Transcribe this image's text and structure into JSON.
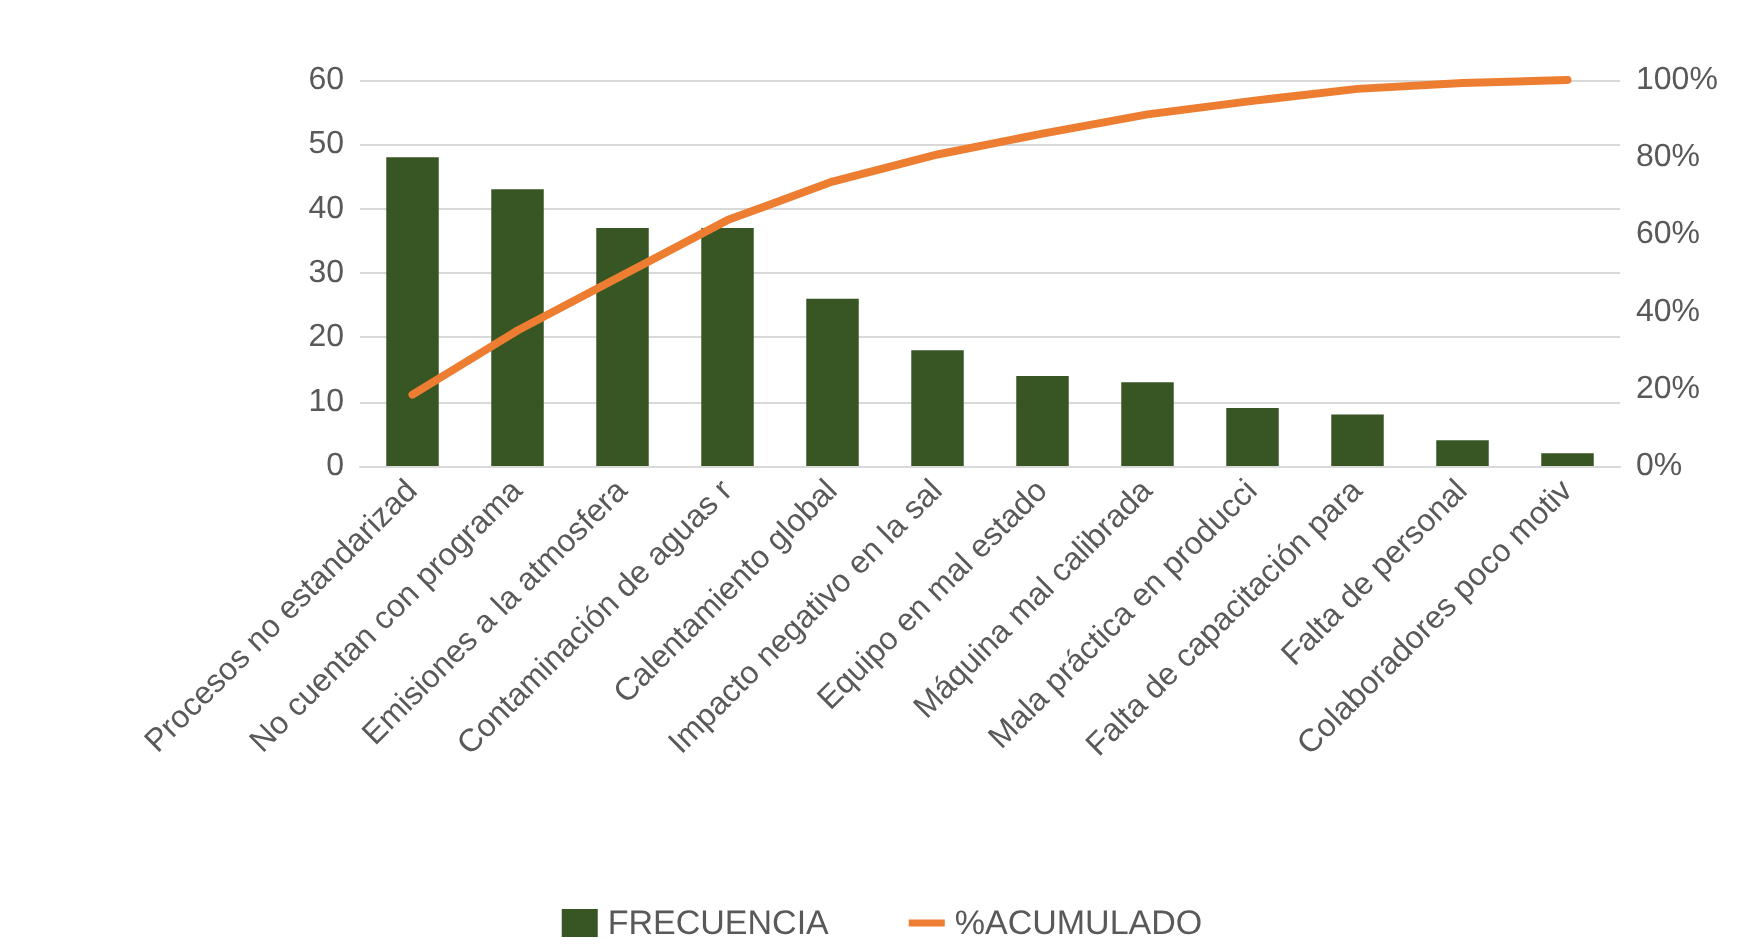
{
  "chart_data": {
    "type": "bar",
    "categories": [
      "Procesos no estandarizad",
      "No cuentan con programa",
      "Emisiones a la atmosfera",
      "Contaminación de aguas r",
      "Calentamiento global",
      "Impacto negativo en la sal",
      "Equipo en mal estado",
      "Máquina mal calibrada",
      "Mala práctica en producci",
      "Falta de capacitación para",
      "Falta de personal",
      "Colaboradores poco motiv"
    ],
    "series": [
      {
        "name": "FRECUENCIA",
        "color": "#375623",
        "values": [
          48,
          43,
          37,
          37,
          26,
          18,
          14,
          13,
          9,
          8,
          4,
          2
        ]
      },
      {
        "name": "%ACUMULADO",
        "type": "line",
        "axis": "y2",
        "color": "#ed7d31",
        "values": [
          18.5,
          35.1,
          49.4,
          63.7,
          73.7,
          80.7,
          86.1,
          91.1,
          94.6,
          97.7,
          99.2,
          100
        ]
      }
    ],
    "ylim": [
      0,
      60
    ],
    "yticks": [
      0,
      10,
      20,
      30,
      40,
      50,
      60
    ],
    "y2lim": [
      0,
      100
    ],
    "y2ticks": [
      {
        "value": 0,
        "label": "0%"
      },
      {
        "value": 20,
        "label": "20%"
      },
      {
        "value": 40,
        "label": "40%"
      },
      {
        "value": 60,
        "label": "60%"
      },
      {
        "value": 80,
        "label": "80%"
      },
      {
        "value": 100,
        "label": "100%"
      }
    ],
    "grid": "y",
    "legend": "bottom",
    "marker": "none",
    "line_style": "solid"
  }
}
